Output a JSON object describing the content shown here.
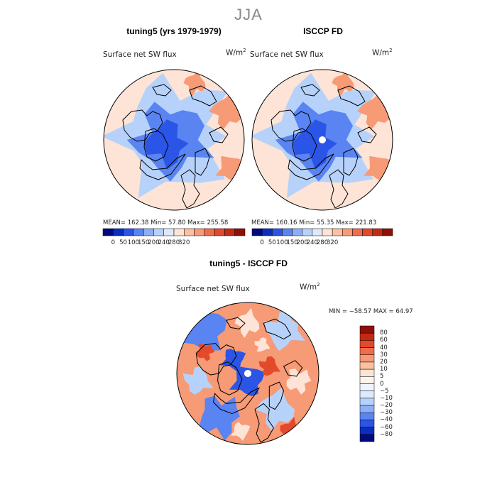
{
  "title": "JJA",
  "panels": [
    {
      "title": "tuning5 (yrs 1979-1979)",
      "variable": "Surface net SW flux",
      "units_base": "W/m",
      "units_exp": "2",
      "stats": "MEAN= 162.38  Min=   57.80  Max= 255.58"
    },
    {
      "title": "ISCCP FD",
      "variable": "Surface net SW flux",
      "units_base": "W/m",
      "units_exp": "2",
      "stats": "MEAN= 160.16  Min=   55.35  Max= 221.83"
    }
  ],
  "colorbar_abs": {
    "tick_labels": [
      "0",
      "50",
      "100",
      "150",
      "200",
      "240",
      "280",
      "320"
    ],
    "colors": [
      "#000a7e",
      "#0a2ec0",
      "#2b55e6",
      "#5984f2",
      "#8cb0f6",
      "#b7d2fa",
      "#dde9fd",
      "#fde4d6",
      "#fbbfa1",
      "#f79a76",
      "#ef6d4a",
      "#e3492b",
      "#c42a12",
      "#8f0f06"
    ]
  },
  "diff_panel": {
    "title": "tuning5 - ISCCP FD",
    "variable": "Surface net SW flux",
    "units_base": "W/m",
    "units_exp": "2",
    "stats": "MIN = −58.57 MAX =  64.97"
  },
  "colorbar_diff": {
    "labels": [
      "80",
      "60",
      "40",
      "30",
      "20",
      "10",
      "5",
      "0",
      "−5",
      "−10",
      "−20",
      "−30",
      "−40",
      "−60",
      "−80"
    ],
    "colors": [
      "#8f0f06",
      "#c42a12",
      "#e3492b",
      "#ef6d4a",
      "#f79a76",
      "#fbbfa1",
      "#fde4d6",
      "#fff4ec",
      "#eef4fd",
      "#dde9fd",
      "#b7d2fa",
      "#8cb0f6",
      "#5984f2",
      "#2b55e6",
      "#0a2ec0",
      "#000a7e"
    ]
  },
  "map_colors": {
    "blue_dark": "#2b55e6",
    "blue_mid": "#5984f2",
    "blue_light": "#b7d2fa",
    "peach": "#fde4d6",
    "orange": "#f79a76",
    "red": "#e3492b"
  }
}
